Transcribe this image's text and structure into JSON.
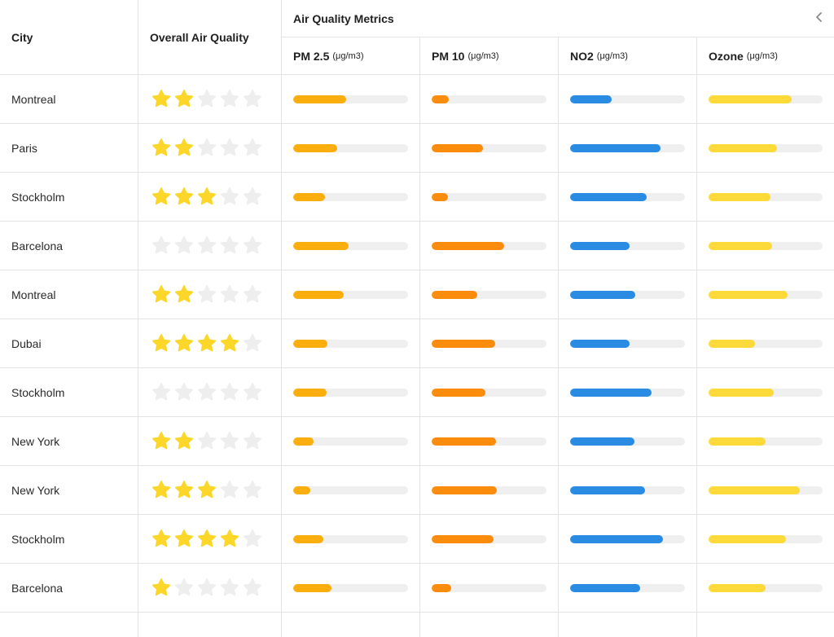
{
  "header": {
    "city": "City",
    "overall": "Overall Air Quality",
    "group": "Air Quality Metrics",
    "metrics": [
      {
        "name": "PM 2.5",
        "unit": "(μg/m3)"
      },
      {
        "name": "PM 10",
        "unit": "(μg/m3)"
      },
      {
        "name": "NO2",
        "unit": "(μg/m3)"
      },
      {
        "name": "Ozone",
        "unit": "(μg/m3)"
      }
    ],
    "collapse_icon": "chevron-left-icon"
  },
  "colors": {
    "pm25": "#fcae0f",
    "pm10": "#fb8c0c",
    "no2": "#2a8be3",
    "ozone": "#fcda3a",
    "star_on": "#fcd72a",
    "star_off": "#eeeeee",
    "track": "#efefef"
  },
  "max_stars": 5,
  "rows": [
    {
      "city": "Montreal",
      "stars": 2,
      "pm25": 0.46,
      "pm10": 0.15,
      "no2": 0.36,
      "ozone": 0.73
    },
    {
      "city": "Paris",
      "stars": 2,
      "pm25": 0.38,
      "pm10": 0.45,
      "no2": 0.79,
      "ozone": 0.6
    },
    {
      "city": "Stockholm",
      "stars": 3,
      "pm25": 0.28,
      "pm10": 0.14,
      "no2": 0.67,
      "ozone": 0.54
    },
    {
      "city": "Barcelona",
      "stars": 0,
      "pm25": 0.48,
      "pm10": 0.63,
      "no2": 0.52,
      "ozone": 0.56
    },
    {
      "city": "Montreal",
      "stars": 2,
      "pm25": 0.44,
      "pm10": 0.4,
      "no2": 0.57,
      "ozone": 0.69
    },
    {
      "city": "Dubai",
      "stars": 4,
      "pm25": 0.3,
      "pm10": 0.55,
      "no2": 0.52,
      "ozone": 0.41
    },
    {
      "city": "Stockholm",
      "stars": 0,
      "pm25": 0.29,
      "pm10": 0.47,
      "no2": 0.71,
      "ozone": 0.57
    },
    {
      "city": "New York",
      "stars": 2,
      "pm25": 0.18,
      "pm10": 0.56,
      "no2": 0.56,
      "ozone": 0.5
    },
    {
      "city": "New York",
      "stars": 3,
      "pm25": 0.15,
      "pm10": 0.57,
      "no2": 0.65,
      "ozone": 0.8
    },
    {
      "city": "Stockholm",
      "stars": 4,
      "pm25": 0.26,
      "pm10": 0.54,
      "no2": 0.81,
      "ozone": 0.68
    },
    {
      "city": "Barcelona",
      "stars": 1,
      "pm25": 0.33,
      "pm10": 0.17,
      "no2": 0.61,
      "ozone": 0.5
    }
  ]
}
